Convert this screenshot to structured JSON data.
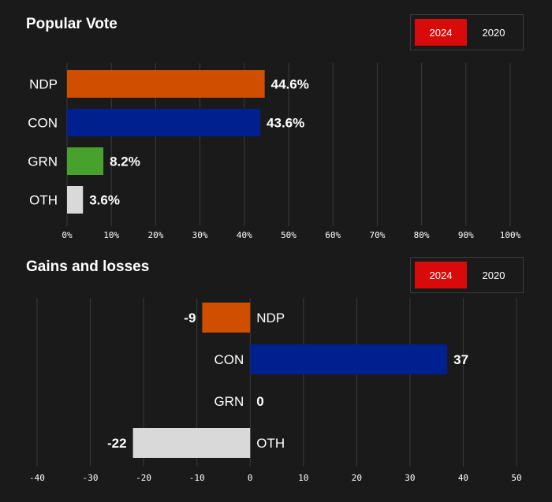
{
  "popular_vote": {
    "title": "Popular Vote",
    "toggle": [
      {
        "label": "2024",
        "active": true
      },
      {
        "label": "2020",
        "active": false
      }
    ]
  },
  "gains_losses": {
    "title": "Gains and losses",
    "toggle": [
      {
        "label": "2024",
        "active": true
      },
      {
        "label": "2020",
        "active": false
      }
    ]
  },
  "colors": {
    "background": "#1b1a1b",
    "grid": "#3a393b",
    "NDP": "#d04e00",
    "CON": "#01208f",
    "GRN": "#46a22c",
    "OTH": "#d9d9d9",
    "toggle_active": "#d90a0a"
  },
  "chart_data": [
    {
      "type": "bar",
      "orientation": "horizontal",
      "title": "Popular Vote",
      "categories": [
        "NDP",
        "CON",
        "GRN",
        "OTH"
      ],
      "values": [
        44.6,
        43.6,
        8.2,
        3.6
      ],
      "value_labels": [
        "44.6%",
        "43.6%",
        "8.2%",
        "3.6%"
      ],
      "xlim": [
        0,
        100
      ],
      "ticks": [
        0,
        10,
        20,
        30,
        40,
        50,
        60,
        70,
        80,
        90,
        100
      ],
      "tick_labels": [
        "0%",
        "10%",
        "20%",
        "30%",
        "40%",
        "50%",
        "60%",
        "70%",
        "80%",
        "90%",
        "100%"
      ],
      "grid": true
    },
    {
      "type": "bar",
      "orientation": "horizontal",
      "title": "Gains and losses",
      "categories": [
        "NDP",
        "CON",
        "GRN",
        "OTH"
      ],
      "values": [
        -9,
        37,
        0,
        -22
      ],
      "value_labels": [
        "-9",
        "37",
        "0",
        "-22"
      ],
      "xlim": [
        -40,
        50
      ],
      "ticks": [
        -40,
        -30,
        -20,
        -10,
        0,
        10,
        20,
        30,
        40,
        50
      ],
      "tick_labels": [
        "-40",
        "-30",
        "-20",
        "-10",
        "0",
        "10",
        "20",
        "30",
        "40",
        "50"
      ],
      "grid": true
    }
  ]
}
